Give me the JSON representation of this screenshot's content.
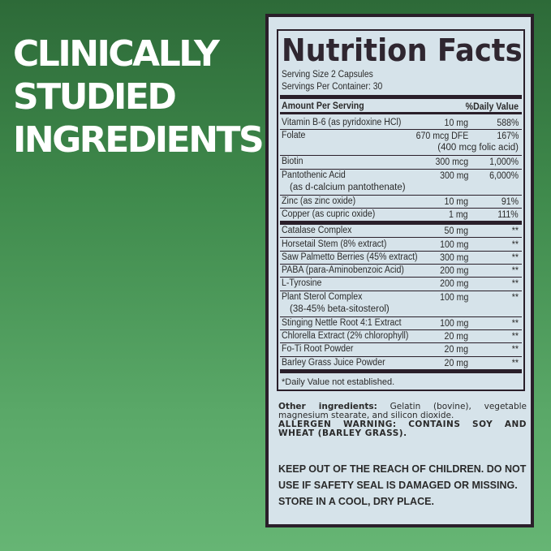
{
  "headline": [
    "CLINICALLY",
    "STUDIED",
    "INGREDIENTS"
  ],
  "label": {
    "title": "Nutrition Facts",
    "serving_size": "Serving Size 2 Capsules",
    "servings_per_container": "Servings Per Container: 30",
    "header_amount": "Amount Per Serving",
    "header_dv": "%Daily Value",
    "vitamins": [
      {
        "name": "Vitamin B-6 (as pyridoxine HCl)",
        "amount": "10 mg",
        "dv": "588%"
      },
      {
        "name": "Folate",
        "amount": "670 mcg DFE",
        "dv": "167%",
        "sub": "(400 mcg folic acid)"
      },
      {
        "name": "Biotin",
        "amount": "300 mcg",
        "dv": "1,000%"
      },
      {
        "name": "Pantothenic Acid",
        "sub": "(as d-calcium pantothenate)",
        "amount": "300 mg",
        "dv": "6,000%"
      },
      {
        "name": "Zinc (as zinc oxide)",
        "amount": "10 mg",
        "dv": "91%"
      },
      {
        "name": "Copper (as cupric oxide)",
        "amount": "1 mg",
        "dv": "111%"
      }
    ],
    "others": [
      {
        "name": "Catalase Complex",
        "amount": "50 mg",
        "dv": "**"
      },
      {
        "name": "Horsetail Stem (8% extract)",
        "amount": "100 mg",
        "dv": "**"
      },
      {
        "name": "Saw Palmetto Berries (45% extract)",
        "amount": "300 mg",
        "dv": "**"
      },
      {
        "name": "PABA (para-Aminobenzoic Acid)",
        "amount": "200 mg",
        "dv": "**"
      },
      {
        "name": "L-Tyrosine",
        "amount": "200 mg",
        "dv": "**"
      },
      {
        "name": "Plant Sterol Complex",
        "sub": "(38-45% beta-sitosterol)",
        "amount": "100 mg",
        "dv": "**"
      },
      {
        "name": "Stinging Nettle Root 4:1 Extract",
        "amount": "100 mg",
        "dv": "**"
      },
      {
        "name": "Chlorella Extract (2% chlorophyll)",
        "amount": "20 mg",
        "dv": "**"
      },
      {
        "name": "Fo-Ti Root Powder",
        "amount": "20 mg",
        "dv": "**"
      },
      {
        "name": "Barley Grass Juice Powder",
        "amount": "20 mg",
        "dv": "**"
      }
    ],
    "footnote": "*Daily Value not established.",
    "other_label": "Other ingredients:",
    "other_text": "Gelatin (bovine), vegetable magnesium stearate, and silicon dioxide.",
    "allergen": "ALLERGEN WARNING: CONTAINS SOY AND WHEAT (BARLEY GRASS).",
    "warning": "KEEP OUT OF THE REACH OF CHILDREN. DO NOT USE IF SAFETY SEAL IS DAMAGED OR MISSING. STORE IN A COOL, DRY PLACE."
  }
}
